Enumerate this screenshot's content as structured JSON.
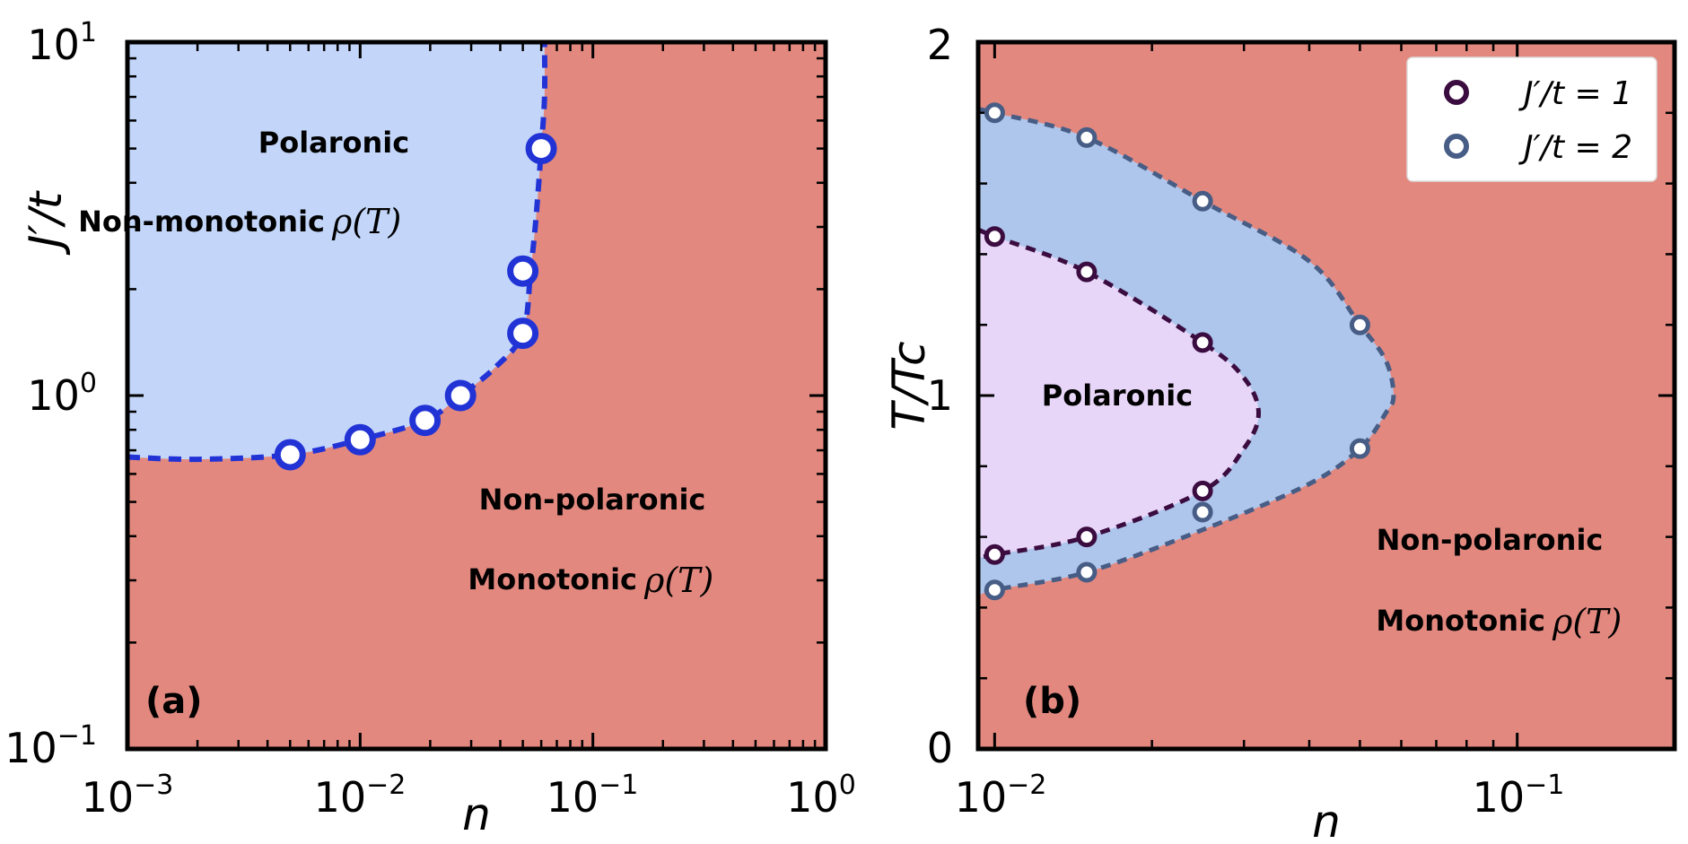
{
  "colors": {
    "background_region": "#e2887f",
    "polaronic_a": "#c3d6f9",
    "boundary_a": "#2233d6",
    "polaronic_b_outer": "#aec6ec",
    "polaronic_b_inner": "#e8d6f9",
    "series_1": "#3b0c3f",
    "series_2": "#475d86"
  },
  "chart_data": [
    {
      "panel": "(a)",
      "type": "scatter",
      "xscale": "log",
      "yscale": "log",
      "xlim": [
        0.001,
        1
      ],
      "ylim": [
        0.1,
        10
      ],
      "xlabel": "n",
      "ylabel": "J′/t",
      "xticks": [
        {
          "value": 0.001,
          "base": "10",
          "exp": "−3"
        },
        {
          "value": 0.01,
          "base": "10",
          "exp": "−2"
        },
        {
          "value": 0.1,
          "base": "10",
          "exp": "−1"
        },
        {
          "value": 1,
          "base": "10",
          "exp": "0"
        }
      ],
      "yticks": [
        {
          "value": 0.1,
          "base": "10",
          "exp": "−1"
        },
        {
          "value": 1,
          "base": "10",
          "exp": "0"
        },
        {
          "value": 10,
          "base": "10",
          "exp": "1"
        }
      ],
      "points": {
        "x": [
          0.005,
          0.01,
          0.019,
          0.027,
          0.05,
          0.05,
          0.06
        ],
        "y": [
          0.68,
          0.75,
          0.85,
          1.0,
          1.5,
          2.25,
          5.0
        ]
      },
      "boundary": {
        "x": [
          0.001,
          0.002,
          0.005,
          0.01,
          0.019,
          0.027,
          0.038,
          0.05,
          0.054,
          0.057,
          0.06,
          0.062,
          0.062
        ],
        "y": [
          0.67,
          0.66,
          0.68,
          0.75,
          0.85,
          1.0,
          1.2,
          1.5,
          2.25,
          3.2,
          5.0,
          7.0,
          10.0
        ]
      },
      "regions": {
        "polaronic_title": "Polaronic",
        "polaronic_desc": "Non-monotonic",
        "nonpolaronic_title": "Non-polaronic",
        "nonpolaronic_desc": "Monotonic",
        "rho": "ρ(T)"
      }
    },
    {
      "panel": "(b)",
      "type": "scatter",
      "xscale": "log",
      "yscale": "linear",
      "xlim": [
        0.0093,
        0.2
      ],
      "ylim": [
        0,
        2
      ],
      "xlabel": "n",
      "ylabel": "T/Tc",
      "xticks": [
        {
          "value": 0.01,
          "base": "10",
          "exp": "−2"
        },
        {
          "value": 0.1,
          "base": "10",
          "exp": "−1"
        }
      ],
      "yticks": [
        {
          "value": 0,
          "label": "0"
        },
        {
          "value": 1,
          "label": "1"
        },
        {
          "value": 2,
          "label": "2"
        }
      ],
      "series": [
        {
          "name": "J′/t = 1",
          "x": [
            0.01,
            0.015,
            0.025,
            0.01,
            0.015,
            0.025
          ],
          "y": [
            1.45,
            1.35,
            1.15,
            0.55,
            0.6,
            0.73
          ],
          "boundary": {
            "x": [
              0.0093,
              0.01,
              0.015,
              0.025,
              0.03,
              0.032,
              0.03,
              0.025,
              0.015,
              0.01,
              0.0093
            ],
            "y": [
              1.47,
              1.45,
              1.35,
              1.15,
              1.05,
              0.95,
              0.85,
              0.73,
              0.6,
              0.55,
              0.54
            ]
          }
        },
        {
          "name": "J′/t = 2",
          "x": [
            0.01,
            0.015,
            0.025,
            0.05,
            0.05,
            0.025,
            0.015,
            0.01
          ],
          "y": [
            1.8,
            1.73,
            1.55,
            1.2,
            0.85,
            0.67,
            0.5,
            0.45
          ],
          "boundary": {
            "x": [
              0.0093,
              0.01,
              0.015,
              0.025,
              0.04,
              0.05,
              0.056,
              0.058,
              0.056,
              0.05,
              0.04,
              0.025,
              0.015,
              0.01,
              0.0093
            ],
            "y": [
              1.81,
              1.8,
              1.73,
              1.55,
              1.38,
              1.2,
              1.1,
              1.0,
              0.95,
              0.85,
              0.75,
              0.62,
              0.5,
              0.45,
              0.43
            ]
          }
        }
      ],
      "legend": [
        "J′/t = 1",
        "J′/t = 2"
      ],
      "legend_position": "top-right",
      "regions": {
        "polaronic_title": "Polaronic",
        "nonpolaronic_title": "Non-polaronic",
        "nonpolaronic_desc": "Monotonic",
        "rho": "ρ(T)"
      }
    }
  ]
}
